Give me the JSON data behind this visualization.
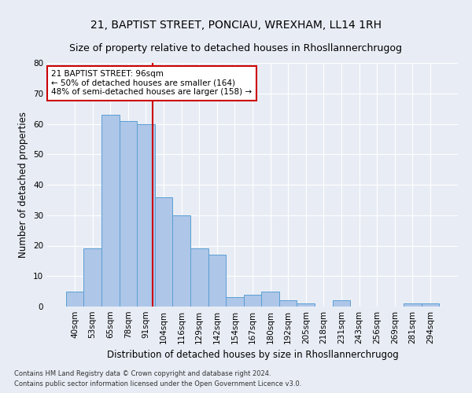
{
  "title": "21, BAPTIST STREET, PONCIAU, WREXHAM, LL14 1RH",
  "subtitle": "Size of property relative to detached houses in Rhosllannerchrugog",
  "xlabel": "Distribution of detached houses by size in Rhosllannerchrugog",
  "ylabel": "Number of detached properties",
  "categories": [
    "40sqm",
    "53sqm",
    "65sqm",
    "78sqm",
    "91sqm",
    "104sqm",
    "116sqm",
    "129sqm",
    "142sqm",
    "154sqm",
    "167sqm",
    "180sqm",
    "192sqm",
    "205sqm",
    "218sqm",
    "231sqm",
    "243sqm",
    "256sqm",
    "269sqm",
    "281sqm",
    "294sqm"
  ],
  "values": [
    5,
    19,
    63,
    61,
    60,
    36,
    30,
    19,
    17,
    3,
    4,
    5,
    2,
    1,
    0,
    2,
    0,
    0,
    0,
    1,
    1
  ],
  "bar_color": "#aec6e8",
  "bar_edge_color": "#5a9fd4",
  "red_line_x": 4.38,
  "annotation_text": "21 BAPTIST STREET: 96sqm\n← 50% of detached houses are smaller (164)\n48% of semi-detached houses are larger (158) →",
  "annotation_box_color": "#ffffff",
  "annotation_box_edge": "#cc0000",
  "annotation_text_color": "#000000",
  "footer1": "Contains HM Land Registry data © Crown copyright and database right 2024.",
  "footer2": "Contains public sector information licensed under the Open Government Licence v3.0.",
  "ylim": [
    0,
    80
  ],
  "yticks": [
    0,
    10,
    20,
    30,
    40,
    50,
    60,
    70,
    80
  ],
  "bg_color": "#e8edf5",
  "plot_bg_color": "#e8edf5",
  "grid_color": "#ffffff",
  "title_fontsize": 10,
  "subtitle_fontsize": 9,
  "xlabel_fontsize": 8.5,
  "ylabel_fontsize": 8.5,
  "tick_fontsize": 7.5,
  "annot_fontsize": 7.5,
  "footer_fontsize": 6
}
